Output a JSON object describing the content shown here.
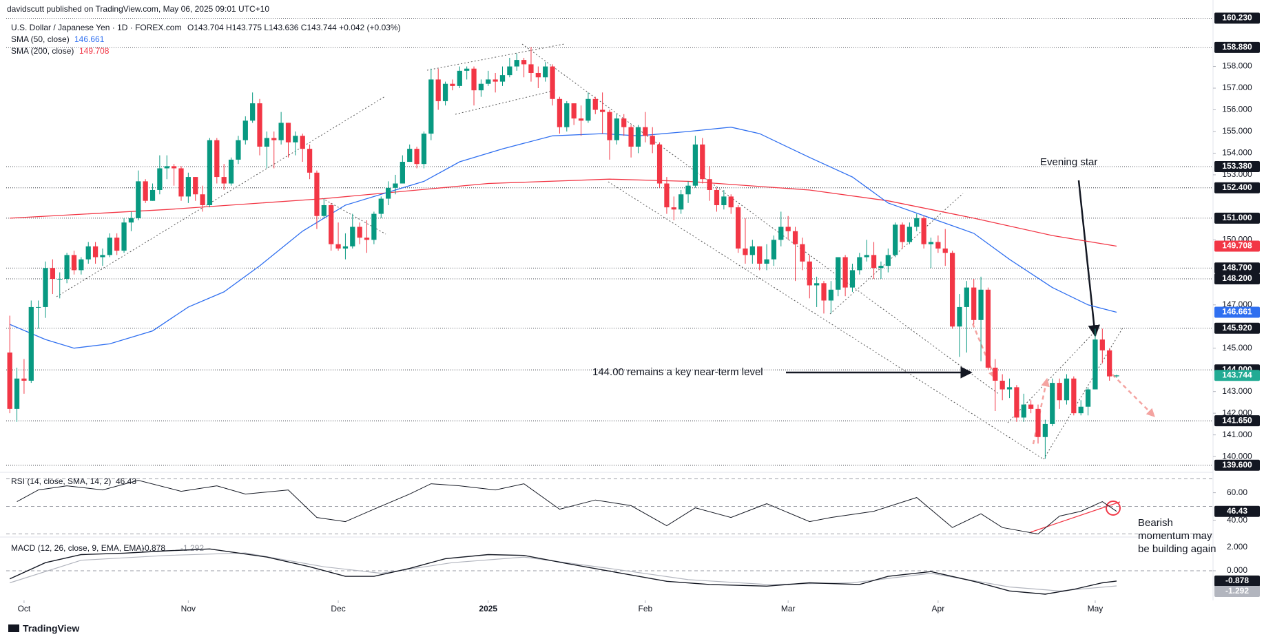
{
  "header": {
    "publisher": "davidscutt published on TradingView.com, May 06, 2025 09:01 UTC+10",
    "symbol": "U.S. Dollar / Japanese Yen · 1D · FOREX.com",
    "ohlc": "O143.704 H143.775 L143.636 C143.744 +0.042 (+0.03%)"
  },
  "footer": "TradingView",
  "chart_data": {
    "type": "candlestick",
    "up_color": "#089981",
    "down_color": "#f23645",
    "xlim": [
      -0.5,
      168.5
    ],
    "xticks": [
      {
        "value": 2,
        "label": "Oct"
      },
      {
        "value": 25,
        "label": "Nov"
      },
      {
        "value": 46,
        "label": "Dec"
      },
      {
        "value": 67,
        "label": "2025"
      },
      {
        "value": 89,
        "label": "Feb"
      },
      {
        "value": 109,
        "label": "Mar"
      },
      {
        "value": 130,
        "label": "Apr"
      },
      {
        "value": 152,
        "label": "May"
      }
    ],
    "ylim": [
      139.4,
      160.4
    ],
    "yticks": [
      {
        "value": 140,
        "label": "140.000"
      },
      {
        "value": 141,
        "label": "141.000"
      },
      {
        "value": 142,
        "label": "142.000"
      },
      {
        "value": 143,
        "label": "143.000"
      },
      {
        "value": 145,
        "label": "145.000"
      },
      {
        "value": 147,
        "label": "147.000"
      },
      {
        "value": 150,
        "label": "150.000"
      },
      {
        "value": 153,
        "label": "153.000"
      },
      {
        "value": 154,
        "label": "154.000"
      },
      {
        "value": 155,
        "label": "155.000"
      },
      {
        "value": 156,
        "label": "156.000"
      },
      {
        "value": 157,
        "label": "157.000"
      },
      {
        "value": 158,
        "label": "158.000"
      }
    ],
    "price_levels": [
      {
        "value": 160.23,
        "label": "160.230"
      },
      {
        "value": 158.88,
        "label": "158.880"
      },
      {
        "value": 153.38,
        "label": "153.380"
      },
      {
        "value": 152.4,
        "label": "152.400"
      },
      {
        "value": 151,
        "label": "151.000"
      },
      {
        "value": 148.7,
        "label": "148.700"
      },
      {
        "value": 148.2,
        "label": "148.200"
      },
      {
        "value": 145.92,
        "label": "145.920"
      },
      {
        "value": 144,
        "label": "144.000"
      },
      {
        "value": 141.65,
        "label": "141.650"
      },
      {
        "value": 139.6,
        "label": "139.600"
      }
    ],
    "level_color": "#131722",
    "ohlc": [
      [
        144.8,
        146.5,
        142.0,
        142.2
      ],
      [
        142.2,
        144.1,
        141.6,
        143.6
      ],
      [
        143.6,
        144.5,
        142.9,
        143.5
      ],
      [
        143.5,
        147.2,
        143.4,
        146.9
      ],
      [
        146.9,
        147.2,
        145.9,
        146.9
      ],
      [
        146.9,
        149.0,
        146.4,
        148.7
      ],
      [
        148.7,
        149.1,
        147.5,
        148.2
      ],
      [
        148.2,
        148.5,
        147.3,
        148.2
      ],
      [
        148.2,
        149.4,
        148.0,
        149.3
      ],
      [
        149.3,
        149.5,
        148.4,
        148.6
      ],
      [
        148.6,
        149.2,
        148.4,
        149.1
      ],
      [
        149.1,
        149.9,
        148.9,
        149.7
      ],
      [
        149.7,
        149.9,
        148.9,
        149.2
      ],
      [
        149.2,
        149.6,
        148.8,
        149.3
      ],
      [
        149.3,
        150.3,
        149.2,
        150.1
      ],
      [
        150.1,
        150.3,
        149.3,
        149.5
      ],
      [
        149.5,
        151.0,
        149.4,
        150.8
      ],
      [
        150.8,
        151.3,
        150.4,
        151.0
      ],
      [
        151.0,
        153.2,
        150.9,
        152.7
      ],
      [
        152.7,
        152.8,
        151.7,
        151.8
      ],
      [
        151.8,
        152.6,
        151.8,
        152.3
      ],
      [
        152.3,
        153.9,
        152.1,
        153.3
      ],
      [
        153.3,
        153.9,
        152.8,
        153.4
      ],
      [
        153.4,
        153.5,
        152.5,
        153.3
      ],
      [
        153.3,
        153.4,
        151.8,
        152.0
      ],
      [
        152.0,
        153.1,
        151.7,
        152.9
      ],
      [
        152.9,
        152.9,
        151.8,
        152.1
      ],
      [
        152.1,
        152.5,
        151.3,
        151.6
      ],
      [
        151.6,
        154.7,
        151.5,
        154.6
      ],
      [
        154.6,
        154.7,
        152.6,
        152.9
      ],
      [
        152.9,
        153.5,
        152.3,
        152.6
      ],
      [
        152.6,
        153.8,
        152.5,
        153.7
      ],
      [
        153.7,
        154.8,
        153.5,
        154.6
      ],
      [
        154.6,
        155.7,
        154.4,
        155.5
      ],
      [
        155.5,
        156.8,
        155.4,
        156.3
      ],
      [
        156.3,
        156.5,
        153.9,
        154.3
      ],
      [
        154.3,
        155.0,
        153.3,
        154.7
      ],
      [
        154.7,
        155.0,
        153.3,
        154.6
      ],
      [
        154.6,
        155.9,
        154.4,
        155.4
      ],
      [
        155.4,
        155.4,
        153.8,
        154.5
      ],
      [
        154.5,
        155.0,
        153.9,
        154.8
      ],
      [
        154.8,
        154.9,
        153.6,
        154.2
      ],
      [
        154.2,
        154.4,
        152.8,
        153.1
      ],
      [
        153.1,
        153.2,
        150.5,
        151.1
      ],
      [
        151.1,
        151.9,
        151.0,
        151.6
      ],
      [
        151.6,
        151.7,
        149.5,
        149.8
      ],
      [
        149.8,
        150.8,
        149.5,
        149.6
      ],
      [
        149.6,
        150.3,
        149.1,
        149.7
      ],
      [
        149.7,
        151.2,
        149.6,
        150.6
      ],
      [
        150.6,
        150.8,
        149.8,
        150.1
      ],
      [
        150.1,
        150.9,
        149.4,
        150.0
      ],
      [
        150.0,
        151.3,
        149.8,
        151.2
      ],
      [
        151.2,
        152.0,
        151.0,
        151.9
      ],
      [
        151.9,
        152.7,
        151.6,
        152.4
      ],
      [
        152.4,
        153.0,
        152.1,
        152.6
      ],
      [
        152.6,
        153.9,
        152.6,
        153.6
      ],
      [
        153.6,
        154.4,
        153.6,
        154.2
      ],
      [
        154.2,
        154.3,
        153.3,
        153.5
      ],
      [
        153.5,
        155.0,
        153.3,
        154.9
      ],
      [
        154.9,
        157.9,
        154.6,
        157.4
      ],
      [
        157.4,
        157.9,
        156.0,
        156.4
      ],
      [
        156.4,
        157.3,
        156.2,
        157.2
      ],
      [
        157.2,
        157.4,
        156.9,
        157.1
      ],
      [
        157.1,
        158.0,
        157.0,
        157.8
      ],
      [
        157.8,
        158.0,
        157.4,
        157.9
      ],
      [
        157.9,
        158.0,
        156.2,
        156.9
      ],
      [
        156.9,
        157.4,
        156.6,
        157.2
      ],
      [
        157.2,
        157.8,
        157.1,
        157.4
      ],
      [
        157.4,
        157.7,
        156.8,
        157.3
      ],
      [
        157.3,
        158.0,
        157.1,
        157.6
      ],
      [
        157.6,
        158.4,
        157.5,
        158.0
      ],
      [
        158.0,
        158.6,
        157.8,
        158.3
      ],
      [
        158.3,
        158.4,
        157.5,
        158.1
      ],
      [
        158.1,
        158.9,
        157.3,
        157.7
      ],
      [
        157.7,
        158.0,
        157.0,
        157.5
      ],
      [
        157.5,
        158.2,
        157.3,
        158.0
      ],
      [
        158.0,
        158.1,
        156.2,
        156.5
      ],
      [
        156.5,
        156.6,
        154.9,
        155.2
      ],
      [
        155.2,
        156.4,
        155.0,
        156.3
      ],
      [
        156.3,
        156.3,
        155.3,
        155.6
      ],
      [
        155.6,
        156.2,
        154.8,
        155.5
      ],
      [
        155.5,
        156.8,
        155.4,
        156.5
      ],
      [
        156.5,
        156.6,
        155.8,
        156.0
      ],
      [
        156.0,
        156.8,
        154.9,
        155.9
      ],
      [
        155.9,
        156.0,
        153.7,
        154.6
      ],
      [
        154.6,
        155.8,
        154.4,
        155.6
      ],
      [
        155.6,
        155.8,
        154.8,
        155.2
      ],
      [
        155.2,
        155.3,
        153.8,
        154.3
      ],
      [
        154.3,
        155.3,
        154.0,
        155.2
      ],
      [
        155.2,
        155.9,
        154.5,
        154.8
      ],
      [
        154.8,
        155.2,
        154.0,
        154.4
      ],
      [
        154.4,
        154.5,
        152.4,
        152.6
      ],
      [
        152.6,
        152.9,
        151.2,
        151.5
      ],
      [
        151.5,
        152.0,
        150.9,
        151.4
      ],
      [
        151.4,
        152.3,
        151.2,
        152.1
      ],
      [
        152.1,
        152.7,
        151.7,
        152.5
      ],
      [
        152.5,
        154.8,
        152.4,
        154.4
      ],
      [
        154.4,
        154.7,
        152.6,
        152.8
      ],
      [
        152.8,
        153.4,
        151.8,
        152.3
      ],
      [
        152.3,
        152.4,
        151.3,
        151.6
      ],
      [
        151.6,
        152.3,
        151.4,
        152.0
      ],
      [
        152.0,
        152.1,
        151.2,
        151.5
      ],
      [
        151.5,
        151.6,
        149.4,
        149.6
      ],
      [
        149.6,
        151.0,
        148.9,
        149.3
      ],
      [
        149.3,
        150.0,
        148.9,
        149.7
      ],
      [
        149.7,
        149.7,
        148.6,
        148.9
      ],
      [
        148.9,
        149.8,
        148.6,
        149.1
      ],
      [
        149.1,
        150.2,
        148.8,
        150.0
      ],
      [
        150.0,
        151.3,
        149.7,
        150.6
      ],
      [
        150.6,
        151.1,
        150.0,
        150.4
      ],
      [
        150.4,
        150.6,
        148.1,
        149.8
      ],
      [
        149.8,
        150.1,
        148.6,
        149.0
      ],
      [
        149.0,
        149.3,
        147.3,
        147.9
      ],
      [
        147.9,
        148.3,
        146.9,
        148.0
      ],
      [
        148.0,
        148.1,
        146.6,
        147.2
      ],
      [
        147.2,
        148.1,
        146.6,
        147.7
      ],
      [
        147.7,
        149.2,
        147.4,
        149.2
      ],
      [
        149.2,
        149.3,
        147.4,
        147.8
      ],
      [
        147.8,
        148.9,
        147.6,
        148.6
      ],
      [
        148.6,
        149.4,
        148.4,
        149.2
      ],
      [
        149.2,
        150.0,
        149.0,
        149.3
      ],
      [
        149.3,
        149.9,
        148.2,
        148.7
      ],
      [
        148.7,
        149.0,
        148.2,
        148.8
      ],
      [
        148.8,
        149.6,
        148.5,
        149.3
      ],
      [
        149.3,
        150.8,
        149.2,
        150.7
      ],
      [
        150.7,
        150.8,
        149.6,
        149.9
      ],
      [
        149.9,
        150.8,
        149.8,
        150.6
      ],
      [
        150.6,
        151.2,
        150.4,
        151.0
      ],
      [
        151.0,
        151.1,
        149.6,
        149.8
      ],
      [
        149.8,
        150.1,
        148.7,
        149.9
      ],
      [
        149.9,
        150.2,
        149.4,
        149.6
      ],
      [
        149.6,
        150.5,
        148.8,
        149.4
      ],
      [
        149.4,
        149.5,
        145.9,
        146.0
      ],
      [
        146.0,
        147.5,
        144.6,
        146.9
      ],
      [
        146.9,
        148.1,
        144.8,
        147.8
      ],
      [
        147.8,
        148.2,
        146.1,
        146.3
      ],
      [
        146.3,
        148.3,
        144.4,
        147.7
      ],
      [
        147.7,
        147.8,
        144.0,
        144.1
      ],
      [
        144.1,
        144.5,
        142.1,
        143.5
      ],
      [
        143.5,
        143.8,
        142.6,
        143.1
      ],
      [
        143.1,
        143.6,
        142.7,
        143.2
      ],
      [
        143.2,
        143.3,
        141.6,
        141.8
      ],
      [
        141.8,
        142.9,
        141.6,
        142.4
      ],
      [
        142.4,
        142.6,
        142.0,
        142.2
      ],
      [
        142.2,
        142.4,
        140.6,
        140.9
      ],
      [
        140.9,
        141.7,
        139.9,
        141.5
      ],
      [
        141.5,
        143.6,
        141.4,
        143.4
      ],
      [
        143.4,
        143.6,
        142.2,
        142.6
      ],
      [
        142.6,
        143.8,
        142.4,
        143.6
      ],
      [
        143.6,
        143.7,
        141.9,
        142.0
      ],
      [
        142.0,
        142.6,
        141.9,
        142.3
      ],
      [
        142.3,
        143.2,
        141.9,
        143.1
      ],
      [
        143.1,
        145.9,
        143.1,
        145.4
      ],
      [
        145.4,
        145.9,
        144.3,
        144.9
      ],
      [
        144.9,
        145.0,
        143.5,
        143.7
      ],
      [
        143.704,
        143.775,
        143.636,
        143.744
      ]
    ],
    "last_color": "#22ab94",
    "sma50": {
      "name": "SMA (50, close)",
      "color": "#2f6ff0",
      "x": [
        0,
        5,
        9,
        14,
        20,
        25,
        30,
        35,
        41,
        47,
        52,
        58,
        63,
        69,
        76,
        83,
        88,
        95,
        101,
        105,
        112,
        118,
        123,
        129,
        135,
        140,
        146,
        151,
        155
      ],
      "values": [
        146.1,
        145.4,
        145.0,
        145.2,
        145.8,
        146.9,
        147.6,
        148.8,
        150.4,
        151.6,
        152.1,
        152.7,
        153.6,
        154.2,
        154.8,
        154.9,
        154.8,
        155.0,
        155.2,
        154.9,
        153.8,
        152.9,
        151.7,
        151.0,
        150.3,
        149.1,
        147.8,
        147.0,
        146.661
      ]
    },
    "sma200": {
      "name": "SMA (200, close)",
      "color": "#f23645",
      "x": [
        0,
        22,
        44,
        67,
        84,
        95,
        112,
        123,
        135,
        146,
        155
      ],
      "values": [
        151.0,
        151.4,
        151.9,
        152.6,
        152.8,
        152.7,
        152.3,
        151.8,
        151.0,
        150.2,
        149.708
      ]
    },
    "rsi": {
      "name": "RSI (14, close, SMA, 14, 2)",
      "color": "#131722",
      "ylim": [
        28.8,
        72.3
      ],
      "yticks": [
        {
          "value": 60,
          "label": "60.00"
        },
        {
          "value": 40,
          "label": "40.00"
        }
      ],
      "bands": [
        70,
        50,
        30
      ],
      "x": [
        1,
        4,
        8,
        13,
        18,
        24,
        29,
        33,
        39,
        43,
        47,
        51,
        56,
        59,
        63,
        68,
        72,
        77,
        82,
        87,
        92,
        96,
        101,
        106,
        112,
        115,
        121,
        127,
        132,
        136,
        139,
        144,
        147,
        150,
        153,
        155
      ],
      "values": [
        53.5,
        62,
        65,
        62,
        69,
        61,
        65,
        59,
        62,
        42,
        39,
        48,
        59,
        66.5,
        65,
        62,
        66.5,
        48,
        54.7,
        50.6,
        36,
        49,
        42,
        52,
        39,
        42,
        46.5,
        56.5,
        34.7,
        44.7,
        34.7,
        30,
        43,
        46.5,
        53.5,
        46.43
      ]
    },
    "macd": {
      "name": "MACD (12, 26, close, 9, EMA, EMA)",
      "ylim": [
        -2.41,
        2.76
      ],
      "yticks": [
        {
          "value": 2,
          "label": "2.000"
        },
        {
          "value": 0,
          "label": "0.000"
        }
      ],
      "series": [
        {
          "color": "#131722",
          "x": [
            0,
            5,
            10,
            16,
            22,
            28,
            36,
            42,
            47,
            51,
            56,
            61,
            67,
            72,
            78,
            85,
            92,
            98,
            106,
            112,
            119,
            123,
            129,
            135,
            140,
            145,
            149,
            153,
            155
          ],
          "values": [
            -0.69,
            0.69,
            1.38,
            1.5,
            1.7,
            1.86,
            1.17,
            0.34,
            -0.48,
            -0.48,
            0.2,
            1.03,
            1.38,
            1.31,
            0.62,
            -0.14,
            -0.9,
            -1.17,
            -1.31,
            -1.03,
            -1.17,
            -0.48,
            -0.07,
            -0.9,
            -1.72,
            -2.0,
            -1.59,
            -1.03,
            -0.878
          ]
        },
        {
          "color": "#b2b5be",
          "x": [
            0,
            10,
            22,
            33,
            44,
            52,
            62,
            72,
            84,
            95,
            106,
            118,
            129,
            140,
            147,
            155
          ],
          "values": [
            -1.03,
            0.9,
            1.31,
            1.52,
            0.34,
            -0.21,
            0.69,
            1.17,
            0.2,
            -0.76,
            -1.17,
            -1.03,
            -0.21,
            -1.38,
            -1.72,
            -1.292
          ]
        }
      ]
    },
    "annotations": [
      "Evening star",
      "144.00 remains a key near-term level",
      "Bearish momentum may be building again"
    ]
  }
}
